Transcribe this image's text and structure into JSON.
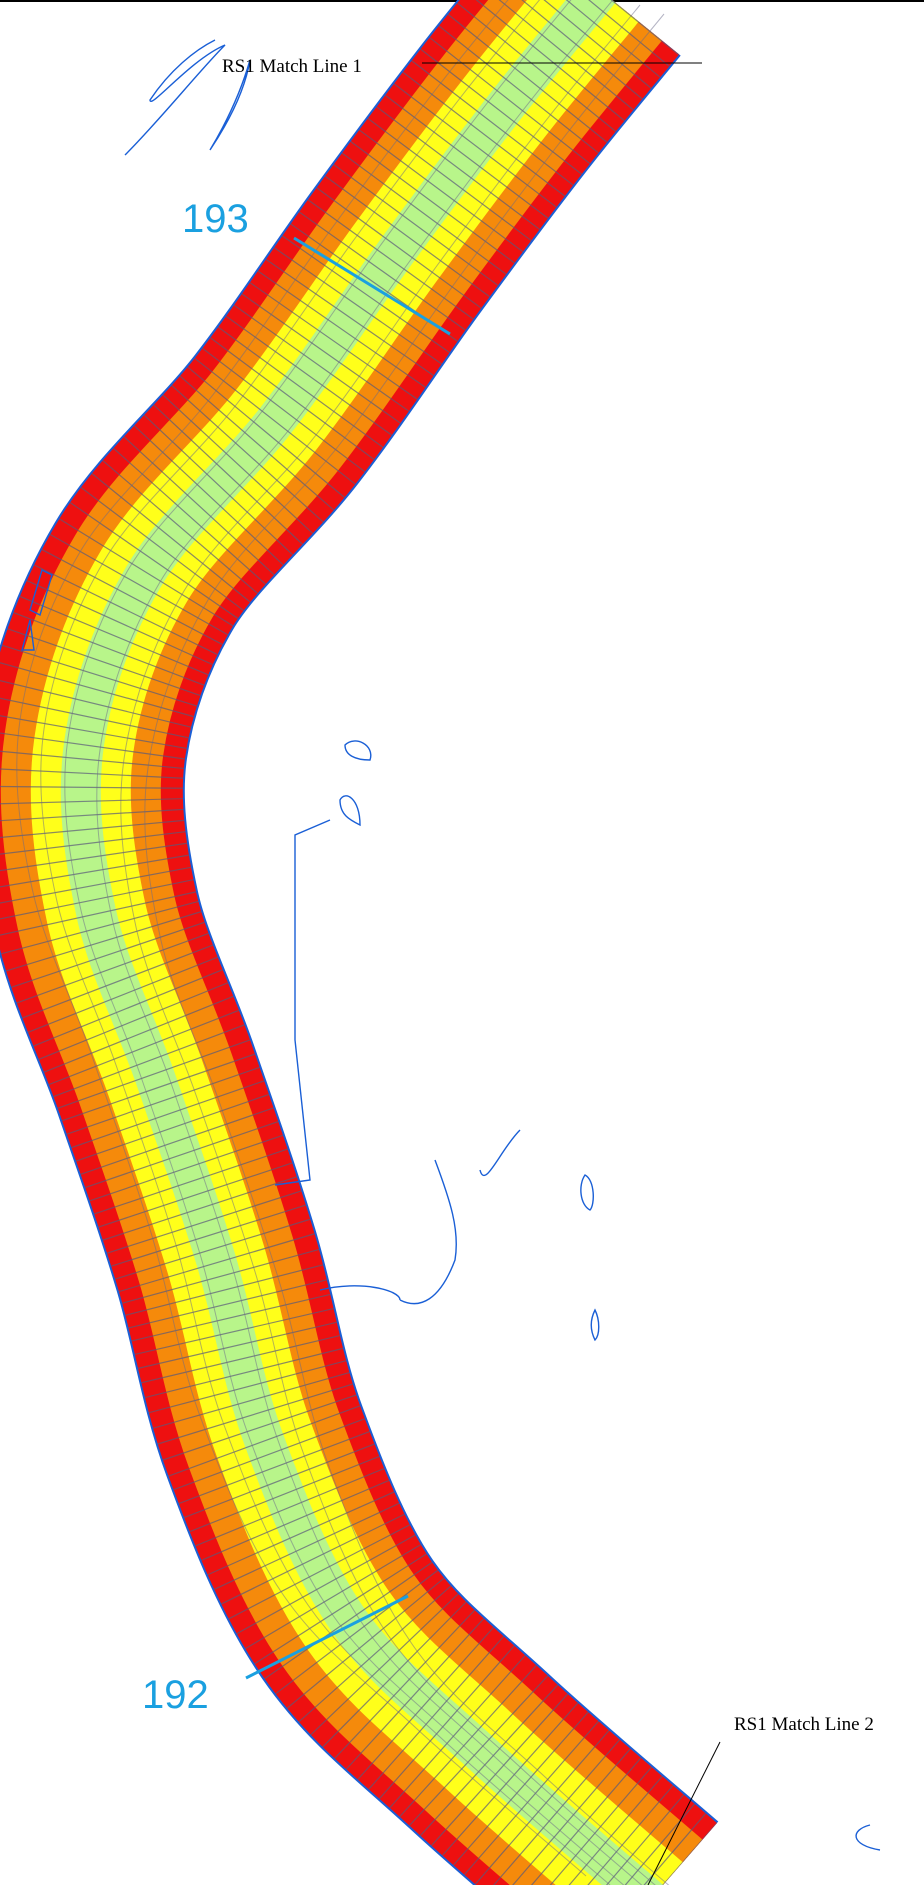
{
  "map": {
    "match_line_top": "RS1 Match Line 1",
    "match_line_bottom": "RS1 Match Line 2",
    "section_upper": "193",
    "section_lower": "192"
  }
}
